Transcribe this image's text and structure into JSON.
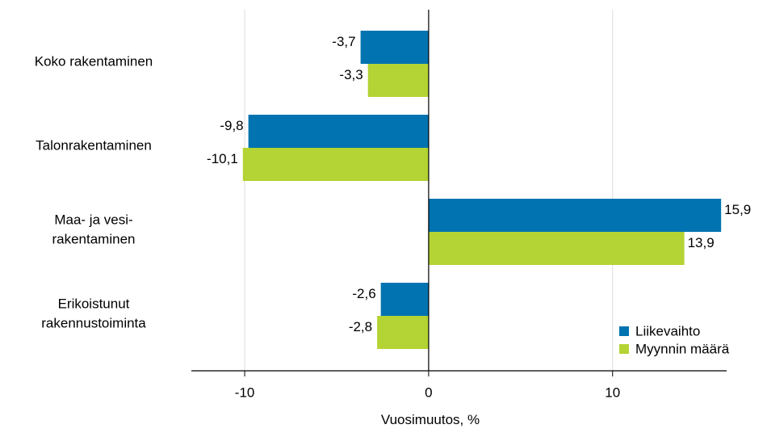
{
  "chart_data": {
    "type": "bar",
    "orientation": "horizontal",
    "categories": [
      [
        "Koko rakentaminen"
      ],
      [
        "Talonrakentaminen"
      ],
      [
        "Maa- ja vesi-",
        "rakentaminen"
      ],
      [
        "Erikoistunut",
        "rakennustoiminta"
      ]
    ],
    "series": [
      {
        "name": "Liikevaihto",
        "color": "#0073b0",
        "values": [
          -3.7,
          -9.8,
          15.9,
          -2.6
        ],
        "labels": [
          "-3,7",
          "-9,8",
          "15,9",
          "-2,6"
        ]
      },
      {
        "name": "Myynnin määrä",
        "color": "#b4d334",
        "values": [
          -3.3,
          -10.1,
          13.9,
          -2.8
        ],
        "labels": [
          "-3,3",
          "-10,1",
          "13,9",
          "-2,8"
        ]
      }
    ],
    "xlabel": "Vuosimuutos, %",
    "xlim": [
      -12.9,
      16.2
    ],
    "xticks": [
      -10,
      0,
      10
    ],
    "xtick_labels": [
      "-10",
      "0",
      "10"
    ],
    "grid": "vertical",
    "legend_position": "bottom-right"
  }
}
